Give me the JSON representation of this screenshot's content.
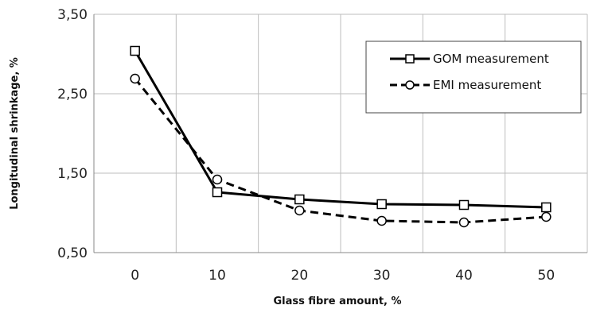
{
  "chart_data": {
    "type": "line",
    "x": [
      0,
      10,
      20,
      30,
      40,
      50
    ],
    "xlabel": "Glass fibre amount, %",
    "ylabel": "Longitudinal shrinkage, %",
    "ylim": [
      0.5,
      3.5
    ],
    "y_ticks": [
      "0,50",
      "1,50",
      "2,50",
      "3,50"
    ],
    "x_ticks": [
      "0",
      "10",
      "20",
      "30",
      "40",
      "50"
    ],
    "grid": true,
    "legend_position": "top-right",
    "series": [
      {
        "name": "GOM measurement",
        "values": [
          3.04,
          1.26,
          1.17,
          1.11,
          1.1,
          1.07
        ],
        "line_style": "solid",
        "marker": "square",
        "color": "#000000"
      },
      {
        "name": "EMI measurement",
        "values": [
          2.69,
          1.42,
          1.03,
          0.9,
          0.88,
          0.95
        ],
        "line_style": "dashed",
        "marker": "circle",
        "color": "#000000"
      }
    ]
  }
}
